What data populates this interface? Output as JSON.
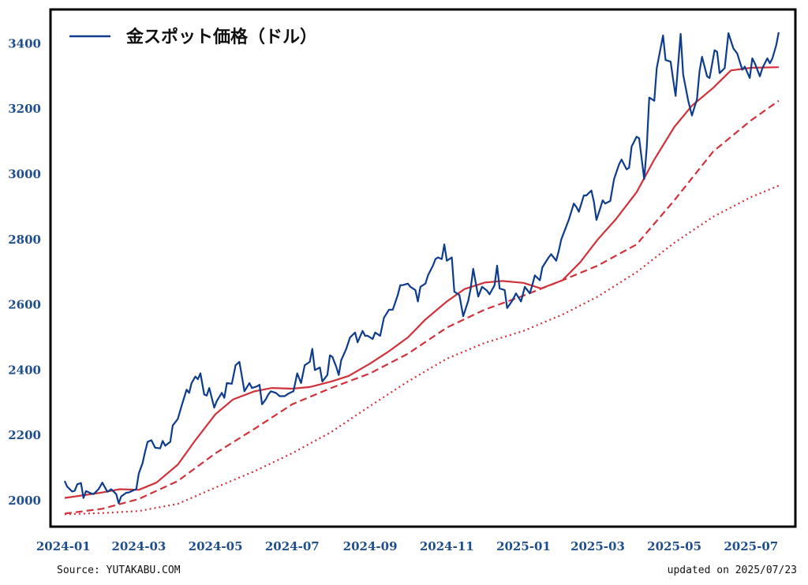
{
  "chart_data": {
    "type": "line",
    "legend": [
      "金スポット価格（ドル）"
    ],
    "legend_position": "top-left",
    "xlabel": "",
    "ylabel": "",
    "x_ticks": [
      "2024-01",
      "2024-03",
      "2024-05",
      "2024-07",
      "2024-09",
      "2024-11",
      "2025-01",
      "2025-03",
      "2025-05",
      "2025-07"
    ],
    "y_ticks": [
      2000,
      2200,
      2400,
      2600,
      2800,
      3000,
      3200,
      3400
    ],
    "xlim": [
      "2023-12-23",
      "2025-08-04"
    ],
    "ylim": [
      1925,
      3500
    ],
    "grid": false,
    "series": [
      {
        "name": "金スポット価格（ドル）",
        "color": "#0d3c8c",
        "style": "solid",
        "points": [
          [
            "2024-01-02",
            2060
          ],
          [
            "2024-01-04",
            2043
          ],
          [
            "2024-01-08",
            2028
          ],
          [
            "2024-01-10",
            2030
          ],
          [
            "2024-01-12",
            2050
          ],
          [
            "2024-01-15",
            2054
          ],
          [
            "2024-01-17",
            2008
          ],
          [
            "2024-01-19",
            2029
          ],
          [
            "2024-01-23",
            2022
          ],
          [
            "2024-01-25",
            2020
          ],
          [
            "2024-01-29",
            2035
          ],
          [
            "2024-02-01",
            2055
          ],
          [
            "2024-02-05",
            2027
          ],
          [
            "2024-02-08",
            2035
          ],
          [
            "2024-02-12",
            2020
          ],
          [
            "2024-02-14",
            1992
          ],
          [
            "2024-02-16",
            2013
          ],
          [
            "2024-02-20",
            2024
          ],
          [
            "2024-02-22",
            2025
          ],
          [
            "2024-02-26",
            2032
          ],
          [
            "2024-02-28",
            2035
          ],
          [
            "2024-03-01",
            2083
          ],
          [
            "2024-03-04",
            2115
          ],
          [
            "2024-03-06",
            2150
          ],
          [
            "2024-03-08",
            2180
          ],
          [
            "2024-03-11",
            2185
          ],
          [
            "2024-03-14",
            2162
          ],
          [
            "2024-03-18",
            2160
          ],
          [
            "2024-03-20",
            2183
          ],
          [
            "2024-03-22",
            2168
          ],
          [
            "2024-03-26",
            2180
          ],
          [
            "2024-03-28",
            2230
          ],
          [
            "2024-04-01",
            2250
          ],
          [
            "2024-04-04",
            2290
          ],
          [
            "2024-04-08",
            2340
          ],
          [
            "2024-04-10",
            2330
          ],
          [
            "2024-04-12",
            2360
          ],
          [
            "2024-04-15",
            2380
          ],
          [
            "2024-04-17",
            2372
          ],
          [
            "2024-04-19",
            2390
          ],
          [
            "2024-04-22",
            2325
          ],
          [
            "2024-04-24",
            2322
          ],
          [
            "2024-04-26",
            2345
          ],
          [
            "2024-04-30",
            2285
          ],
          [
            "2024-05-02",
            2305
          ],
          [
            "2024-05-06",
            2330
          ],
          [
            "2024-05-08",
            2315
          ],
          [
            "2024-05-10",
            2360
          ],
          [
            "2024-05-14",
            2358
          ],
          [
            "2024-05-17",
            2415
          ],
          [
            "2024-05-20",
            2425
          ],
          [
            "2024-05-22",
            2380
          ],
          [
            "2024-05-24",
            2335
          ],
          [
            "2024-05-28",
            2360
          ],
          [
            "2024-05-30",
            2345
          ],
          [
            "2024-06-03",
            2350
          ],
          [
            "2024-06-05",
            2355
          ],
          [
            "2024-06-07",
            2295
          ],
          [
            "2024-06-10",
            2310
          ],
          [
            "2024-06-12",
            2325
          ],
          [
            "2024-06-14",
            2335
          ],
          [
            "2024-06-18",
            2330
          ],
          [
            "2024-06-21",
            2320
          ],
          [
            "2024-06-25",
            2320
          ],
          [
            "2024-06-28",
            2328
          ],
          [
            "2024-07-02",
            2335
          ],
          [
            "2024-07-05",
            2390
          ],
          [
            "2024-07-08",
            2360
          ],
          [
            "2024-07-11",
            2415
          ],
          [
            "2024-07-15",
            2425
          ],
          [
            "2024-07-17",
            2465
          ],
          [
            "2024-07-19",
            2400
          ],
          [
            "2024-07-23",
            2408
          ],
          [
            "2024-07-25",
            2365
          ],
          [
            "2024-07-29",
            2385
          ],
          [
            "2024-07-31",
            2445
          ],
          [
            "2024-08-02",
            2440
          ],
          [
            "2024-08-05",
            2410
          ],
          [
            "2024-08-07",
            2385
          ],
          [
            "2024-08-09",
            2430
          ],
          [
            "2024-08-13",
            2465
          ],
          [
            "2024-08-16",
            2500
          ],
          [
            "2024-08-20",
            2515
          ],
          [
            "2024-08-22",
            2485
          ],
          [
            "2024-08-26",
            2520
          ],
          [
            "2024-08-28",
            2505
          ],
          [
            "2024-08-30",
            2505
          ],
          [
            "2024-09-03",
            2495
          ],
          [
            "2024-09-05",
            2515
          ],
          [
            "2024-09-09",
            2505
          ],
          [
            "2024-09-12",
            2560
          ],
          [
            "2024-09-16",
            2585
          ],
          [
            "2024-09-19",
            2585
          ],
          [
            "2024-09-23",
            2630
          ],
          [
            "2024-09-25",
            2660
          ],
          [
            "2024-09-27",
            2660
          ],
          [
            "2024-10-01",
            2665
          ],
          [
            "2024-10-03",
            2655
          ],
          [
            "2024-10-07",
            2645
          ],
          [
            "2024-10-09",
            2610
          ],
          [
            "2024-10-11",
            2655
          ],
          [
            "2024-10-15",
            2665
          ],
          [
            "2024-10-17",
            2690
          ],
          [
            "2024-10-21",
            2720
          ],
          [
            "2024-10-23",
            2740
          ],
          [
            "2024-10-25",
            2745
          ],
          [
            "2024-10-28",
            2740
          ],
          [
            "2024-10-30",
            2785
          ],
          [
            "2024-11-01",
            2735
          ],
          [
            "2024-11-05",
            2745
          ],
          [
            "2024-11-07",
            2640
          ],
          [
            "2024-11-11",
            2630
          ],
          [
            "2024-11-14",
            2565
          ],
          [
            "2024-11-18",
            2612
          ],
          [
            "2024-11-20",
            2650
          ],
          [
            "2024-11-22",
            2710
          ],
          [
            "2024-11-26",
            2625
          ],
          [
            "2024-11-29",
            2655
          ],
          [
            "2024-12-03",
            2643
          ],
          [
            "2024-12-05",
            2632
          ],
          [
            "2024-12-09",
            2660
          ],
          [
            "2024-12-11",
            2720
          ],
          [
            "2024-12-13",
            2650
          ],
          [
            "2024-12-17",
            2645
          ],
          [
            "2024-12-19",
            2590
          ],
          [
            "2024-12-23",
            2612
          ],
          [
            "2024-12-26",
            2635
          ],
          [
            "2024-12-30",
            2610
          ],
          [
            "2025-01-02",
            2655
          ],
          [
            "2025-01-06",
            2635
          ],
          [
            "2025-01-08",
            2660
          ],
          [
            "2025-01-10",
            2690
          ],
          [
            "2025-01-14",
            2675
          ],
          [
            "2025-01-16",
            2715
          ],
          [
            "2025-01-21",
            2745
          ],
          [
            "2025-01-23",
            2755
          ],
          [
            "2025-01-27",
            2735
          ],
          [
            "2025-01-29",
            2765
          ],
          [
            "2025-01-31",
            2800
          ],
          [
            "2025-02-04",
            2840
          ],
          [
            "2025-02-06",
            2860
          ],
          [
            "2025-02-10",
            2910
          ],
          [
            "2025-02-12",
            2900
          ],
          [
            "2025-02-14",
            2885
          ],
          [
            "2025-02-18",
            2935
          ],
          [
            "2025-02-20",
            2935
          ],
          [
            "2025-02-24",
            2950
          ],
          [
            "2025-02-26",
            2915
          ],
          [
            "2025-02-28",
            2860
          ],
          [
            "2025-03-03",
            2895
          ],
          [
            "2025-03-05",
            2920
          ],
          [
            "2025-03-07",
            2910
          ],
          [
            "2025-03-11",
            2918
          ],
          [
            "2025-03-14",
            2985
          ],
          [
            "2025-03-18",
            3030
          ],
          [
            "2025-03-20",
            3045
          ],
          [
            "2025-03-24",
            3015
          ],
          [
            "2025-03-26",
            3020
          ],
          [
            "2025-03-28",
            3085
          ],
          [
            "2025-04-01",
            3115
          ],
          [
            "2025-04-03",
            3110
          ],
          [
            "2025-04-07",
            2985
          ],
          [
            "2025-04-09",
            3080
          ],
          [
            "2025-04-11",
            3235
          ],
          [
            "2025-04-15",
            3225
          ],
          [
            "2025-04-17",
            3325
          ],
          [
            "2025-04-22",
            3425
          ],
          [
            "2025-04-24",
            3350
          ],
          [
            "2025-04-28",
            3345
          ],
          [
            "2025-04-30",
            3290
          ],
          [
            "2025-05-02",
            3240
          ],
          [
            "2025-05-06",
            3430
          ],
          [
            "2025-05-08",
            3305
          ],
          [
            "2025-05-12",
            3225
          ],
          [
            "2025-05-15",
            3180
          ],
          [
            "2025-05-19",
            3230
          ],
          [
            "2025-05-21",
            3315
          ],
          [
            "2025-05-23",
            3360
          ],
          [
            "2025-05-27",
            3300
          ],
          [
            "2025-05-29",
            3295
          ],
          [
            "2025-06-02",
            3380
          ],
          [
            "2025-06-04",
            3375
          ],
          [
            "2025-06-06",
            3310
          ],
          [
            "2025-06-10",
            3325
          ],
          [
            "2025-06-13",
            3432
          ],
          [
            "2025-06-17",
            3385
          ],
          [
            "2025-06-20",
            3370
          ],
          [
            "2025-06-24",
            3320
          ],
          [
            "2025-06-26",
            3330
          ],
          [
            "2025-06-30",
            3295
          ],
          [
            "2025-07-02",
            3355
          ],
          [
            "2025-07-04",
            3340
          ],
          [
            "2025-07-08",
            3300
          ],
          [
            "2025-07-10",
            3325
          ],
          [
            "2025-07-14",
            3355
          ],
          [
            "2025-07-16",
            3340
          ],
          [
            "2025-07-18",
            3355
          ],
          [
            "2025-07-21",
            3395
          ],
          [
            "2025-07-23",
            3435
          ]
        ]
      },
      {
        "name": "",
        "color": "#d0313a",
        "style": "solid",
        "points": [
          [
            "2024-01-02",
            2008
          ],
          [
            "2024-02-01",
            2025
          ],
          [
            "2024-02-15",
            2035
          ],
          [
            "2024-03-01",
            2033
          ],
          [
            "2024-03-15",
            2055
          ],
          [
            "2024-04-01",
            2110
          ],
          [
            "2024-04-15",
            2185
          ],
          [
            "2024-05-01",
            2265
          ],
          [
            "2024-05-15",
            2310
          ],
          [
            "2024-06-01",
            2335
          ],
          [
            "2024-06-15",
            2345
          ],
          [
            "2024-07-01",
            2343
          ],
          [
            "2024-07-15",
            2348
          ],
          [
            "2024-08-01",
            2365
          ],
          [
            "2024-08-15",
            2382
          ],
          [
            "2024-09-01",
            2420
          ],
          [
            "2024-09-15",
            2455
          ],
          [
            "2024-10-01",
            2500
          ],
          [
            "2024-10-15",
            2555
          ],
          [
            "2024-11-01",
            2610
          ],
          [
            "2024-11-15",
            2648
          ],
          [
            "2024-12-01",
            2668
          ],
          [
            "2024-12-15",
            2673
          ],
          [
            "2025-01-01",
            2667
          ],
          [
            "2025-01-15",
            2650
          ],
          [
            "2025-02-01",
            2675
          ],
          [
            "2025-02-15",
            2730
          ],
          [
            "2025-03-01",
            2800
          ],
          [
            "2025-03-15",
            2860
          ],
          [
            "2025-04-01",
            2945
          ],
          [
            "2025-04-15",
            3045
          ],
          [
            "2025-05-01",
            3145
          ],
          [
            "2025-05-15",
            3210
          ],
          [
            "2025-06-01",
            3265
          ],
          [
            "2025-06-15",
            3318
          ],
          [
            "2025-07-01",
            3326
          ],
          [
            "2025-07-23",
            3328
          ]
        ]
      },
      {
        "name": "",
        "color": "#d0313a",
        "style": "dashed",
        "points": [
          [
            "2024-01-02",
            1960
          ],
          [
            "2024-02-01",
            1975
          ],
          [
            "2024-03-01",
            2005
          ],
          [
            "2024-04-01",
            2060
          ],
          [
            "2024-05-01",
            2145
          ],
          [
            "2024-06-01",
            2220
          ],
          [
            "2024-07-01",
            2295
          ],
          [
            "2024-08-01",
            2345
          ],
          [
            "2024-09-01",
            2390
          ],
          [
            "2024-10-01",
            2450
          ],
          [
            "2024-11-01",
            2530
          ],
          [
            "2024-12-01",
            2585
          ],
          [
            "2025-01-01",
            2628
          ],
          [
            "2025-02-01",
            2675
          ],
          [
            "2025-03-01",
            2720
          ],
          [
            "2025-04-01",
            2785
          ],
          [
            "2025-05-01",
            2920
          ],
          [
            "2025-06-01",
            3070
          ],
          [
            "2025-07-01",
            3165
          ],
          [
            "2025-07-23",
            3225
          ]
        ]
      },
      {
        "name": "",
        "color": "#d0313a",
        "style": "dotted",
        "points": [
          [
            "2024-01-02",
            1958
          ],
          [
            "2024-02-01",
            1962
          ],
          [
            "2024-03-01",
            1968
          ],
          [
            "2024-04-01",
            1990
          ],
          [
            "2024-05-01",
            2040
          ],
          [
            "2024-06-01",
            2090
          ],
          [
            "2024-07-01",
            2145
          ],
          [
            "2024-08-01",
            2210
          ],
          [
            "2024-09-01",
            2290
          ],
          [
            "2024-10-01",
            2365
          ],
          [
            "2024-11-01",
            2435
          ],
          [
            "2024-12-01",
            2483
          ],
          [
            "2025-01-01",
            2520
          ],
          [
            "2025-02-01",
            2570
          ],
          [
            "2025-03-01",
            2625
          ],
          [
            "2025-04-01",
            2700
          ],
          [
            "2025-05-01",
            2790
          ],
          [
            "2025-06-01",
            2870
          ],
          [
            "2025-07-01",
            2930
          ],
          [
            "2025-07-23",
            2965
          ]
        ]
      }
    ]
  },
  "footer": {
    "source": "Source: YUTAKABU.COM",
    "updated": "updated on 2025/07/23"
  }
}
